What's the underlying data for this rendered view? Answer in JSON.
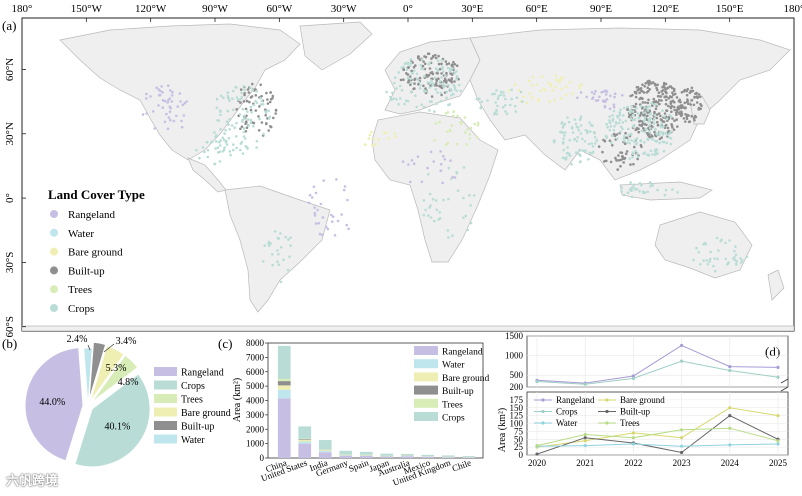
{
  "colors": {
    "rangeland": "#c7bfe3",
    "water": "#bfe6ec",
    "bare_ground": "#efefb3",
    "built_up": "#8f8f8f",
    "trees": "#d7ecb6",
    "crops": "#b9ddd6",
    "land": "#efefef",
    "coast": "#b9b9b9"
  },
  "watermark": "六帆跨境",
  "chart_data": [
    {
      "type": "map",
      "panel_label": "(a)",
      "x_ticks": [
        "180°",
        "150°W",
        "120°W",
        "90°W",
        "60°W",
        "30°W",
        "0°",
        "30°E",
        "60°E",
        "90°E",
        "120°E",
        "150°E",
        "180°"
      ],
      "y_ticks": [
        "60°N",
        "30°N",
        "0°",
        "30°S",
        "60°S"
      ],
      "lon_range": [
        -180,
        180
      ],
      "lat_range": [
        -62,
        84
      ],
      "legend_title": "Land Cover Type",
      "legend": [
        "Rangeland",
        "Water",
        "Bare ground",
        "Built-up",
        "Trees",
        "Crops"
      ],
      "legend_placement": "lower-left"
    },
    {
      "type": "pie",
      "panel_label": "(b)",
      "labels": [
        "Rangeland",
        "Crops",
        "Trees",
        "Bare ground",
        "Built-up",
        "Water"
      ],
      "values": [
        44.0,
        40.1,
        4.8,
        5.3,
        3.4,
        2.4
      ],
      "value_labels": [
        "44.0%",
        "40.1%",
        "4.8%",
        "5.3%",
        "3.4%",
        "2.4%"
      ],
      "legend_placement": "right"
    },
    {
      "type": "bar",
      "stacked": true,
      "panel_label": "(c)",
      "ylabel": "Area (km²)",
      "ylim": [
        0,
        8000
      ],
      "yticks": [
        0,
        1000,
        2000,
        3000,
        4000,
        5000,
        6000,
        7000,
        8000
      ],
      "categories": [
        "China",
        "United States",
        "India",
        "Germany",
        "Spain",
        "Japan",
        "Australia",
        "Mexico",
        "United Kingdom",
        "Chile"
      ],
      "series": [
        {
          "name": "Rangeland",
          "values": [
            4150,
            1000,
            400,
            150,
            150,
            80,
            120,
            80,
            50,
            50
          ]
        },
        {
          "name": "Water",
          "values": [
            600,
            150,
            100,
            30,
            20,
            20,
            20,
            20,
            20,
            10
          ]
        },
        {
          "name": "Bare ground",
          "values": [
            300,
            100,
            50,
            20,
            30,
            10,
            20,
            10,
            10,
            10
          ]
        },
        {
          "name": "Built-up",
          "values": [
            300,
            50,
            20,
            20,
            10,
            20,
            10,
            10,
            10,
            5
          ]
        },
        {
          "name": "Trees",
          "values": [
            150,
            50,
            30,
            30,
            20,
            20,
            10,
            10,
            10,
            5
          ]
        },
        {
          "name": "Crops",
          "values": [
            2300,
            850,
            650,
            250,
            200,
            150,
            100,
            90,
            80,
            60
          ]
        }
      ],
      "legend_placement": "top-right"
    },
    {
      "type": "line",
      "panel_label": "(d)",
      "ylabel": "Area (km²)",
      "x": [
        2020,
        2021,
        2022,
        2023,
        2024,
        2025
      ],
      "ylim_lower": [
        0,
        200
      ],
      "ylim_upper": [
        200,
        1500
      ],
      "yticks_lower": [
        0,
        25,
        50,
        75,
        100,
        125,
        150,
        175
      ],
      "yticks_upper": [
        200,
        500,
        1000,
        1500
      ],
      "broken_axis": true,
      "grid": true,
      "series": [
        {
          "name": "Rangeland",
          "values": [
            370,
            300,
            480,
            1260,
            720,
            700
          ]
        },
        {
          "name": "Bare ground",
          "values": [
            25,
            45,
            70,
            55,
            150,
            125
          ]
        },
        {
          "name": "Crops",
          "values": [
            340,
            270,
            420,
            860,
            620,
            450
          ]
        },
        {
          "name": "Built-up",
          "values": [
            3,
            55,
            38,
            8,
            125,
            50
          ]
        },
        {
          "name": "Water",
          "values": [
            28,
            30,
            35,
            28,
            32,
            35
          ]
        },
        {
          "name": "Trees",
          "values": [
            30,
            65,
            55,
            80,
            85,
            45
          ]
        }
      ],
      "legend_placement": "top-left"
    }
  ]
}
